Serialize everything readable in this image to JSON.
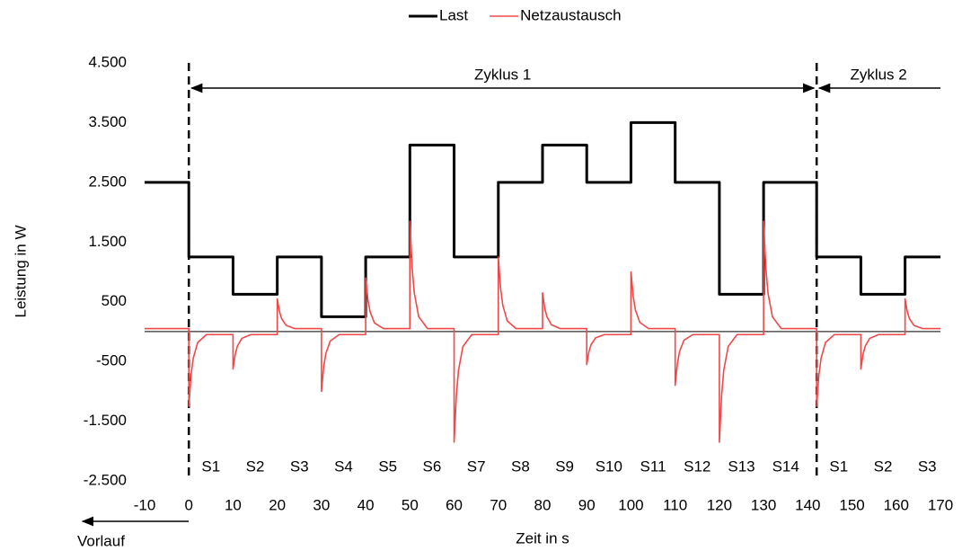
{
  "chart_data": {
    "type": "line",
    "xlabel": "Zeit in s",
    "ylabel": "Leistung in W",
    "xlim": [
      -10,
      170
    ],
    "xticks": [
      -10,
      0,
      10,
      20,
      30,
      40,
      50,
      60,
      70,
      80,
      90,
      100,
      110,
      120,
      130,
      140,
      150,
      160,
      170
    ],
    "ylim": [
      -2500,
      4500
    ],
    "yticks": [
      {
        "value": -2500,
        "label": "-2.500"
      },
      {
        "value": -1500,
        "label": "-1.500"
      },
      -500,
      500,
      {
        "value": 1500,
        "label": "1.500"
      },
      {
        "value": 2500,
        "label": "2.500"
      },
      {
        "value": 3500,
        "label": "3.500"
      },
      {
        "value": 4500,
        "label": "4.500"
      }
    ],
    "grid": false,
    "legend": "top",
    "series": [
      {
        "name": "Last",
        "color": "#000000",
        "x": [
          -10,
          0,
          0,
          10,
          10,
          20,
          20,
          30,
          30,
          40,
          40,
          50,
          50,
          60,
          60,
          70,
          70,
          80,
          80,
          90,
          90,
          100,
          100,
          110,
          110,
          120,
          120,
          130,
          130,
          142,
          142,
          152,
          152,
          162,
          162,
          170
        ],
        "values": [
          2500,
          2500,
          1250,
          1250,
          625,
          625,
          1250,
          1250,
          250,
          250,
          1250,
          1250,
          3125,
          3125,
          1250,
          1250,
          2500,
          2500,
          3125,
          3125,
          2500,
          2500,
          3500,
          3500,
          2500,
          2500,
          625,
          625,
          2500,
          2500,
          1250,
          1250,
          625,
          625,
          1250,
          1250
        ]
      },
      {
        "name": "Netzaustausch",
        "color": "#f04848",
        "x": [
          -10,
          0,
          0,
          0.5,
          1,
          2,
          4,
          10,
          10,
          10.5,
          11,
          12,
          14,
          20,
          20,
          20.5,
          21,
          22,
          24,
          30,
          30,
          30.5,
          31,
          32,
          34,
          40,
          40,
          40.5,
          41,
          42,
          44,
          50,
          50,
          50.5,
          51,
          52,
          54,
          60,
          60,
          60.5,
          61,
          62,
          64,
          70,
          70,
          70.5,
          71,
          72,
          74,
          80,
          80,
          80.5,
          81,
          82,
          84,
          90,
          90,
          90.5,
          91,
          92,
          94,
          100,
          100,
          100.5,
          101,
          102,
          104,
          110,
          110,
          110.5,
          111,
          112,
          114,
          120,
          120,
          120.5,
          121,
          122,
          124,
          130,
          130,
          130.5,
          131,
          132,
          134,
          142,
          142,
          142.5,
          143,
          144,
          146,
          152,
          152,
          152.5,
          153,
          154,
          156,
          162,
          162,
          162.5,
          163,
          164,
          166,
          170
        ],
        "values": [
          50,
          50,
          -1250,
          -734,
          -446,
          -182,
          -50,
          -50,
          -625,
          -378,
          -240,
          -113,
          -50,
          -50,
          550,
          335,
          215,
          105,
          50,
          50,
          -1000,
          -592,
          -364,
          -155,
          -50,
          -50,
          900,
          535,
          331,
          144,
          50,
          50,
          1850,
          1076,
          644,
          248,
          50,
          50,
          -1850,
          -1076,
          -644,
          -248,
          -50,
          -50,
          1250,
          734,
          446,
          182,
          50,
          50,
          650,
          392,
          248,
          116,
          50,
          50,
          -550,
          -335,
          -215,
          -105,
          -50,
          -50,
          1000,
          592,
          364,
          155,
          50,
          50,
          -900,
          -535,
          -331,
          -144,
          -50,
          -50,
          -1850,
          -1076,
          -644,
          -248,
          -50,
          -50,
          1850,
          1076,
          644,
          248,
          50,
          50,
          -1250,
          -734,
          -446,
          -182,
          -50,
          -50,
          -625,
          -378,
          -240,
          -113,
          -50,
          -50,
          550,
          335,
          215,
          105,
          50,
          50
        ]
      }
    ],
    "cycles": [
      {
        "label": "Zyklus 1",
        "start": 0,
        "end": 142
      },
      {
        "label": "Zyklus 2",
        "start": 142,
        "end": 170
      }
    ],
    "segments": [
      {
        "label": "S1",
        "x": 5
      },
      {
        "label": "S2",
        "x": 15
      },
      {
        "label": "S3",
        "x": 25
      },
      {
        "label": "S4",
        "x": 35
      },
      {
        "label": "S5",
        "x": 45
      },
      {
        "label": "S6",
        "x": 55
      },
      {
        "label": "S7",
        "x": 65
      },
      {
        "label": "S8",
        "x": 75
      },
      {
        "label": "S9",
        "x": 85
      },
      {
        "label": "S10",
        "x": 95
      },
      {
        "label": "S11",
        "x": 105
      },
      {
        "label": "S12",
        "x": 115
      },
      {
        "label": "S13",
        "x": 125
      },
      {
        "label": "S14",
        "x": 135
      },
      {
        "label": "S1",
        "x": 147
      },
      {
        "label": "S2",
        "x": 157
      },
      {
        "label": "S3",
        "x": 167
      }
    ],
    "lead_in": "Vorlauf"
  }
}
